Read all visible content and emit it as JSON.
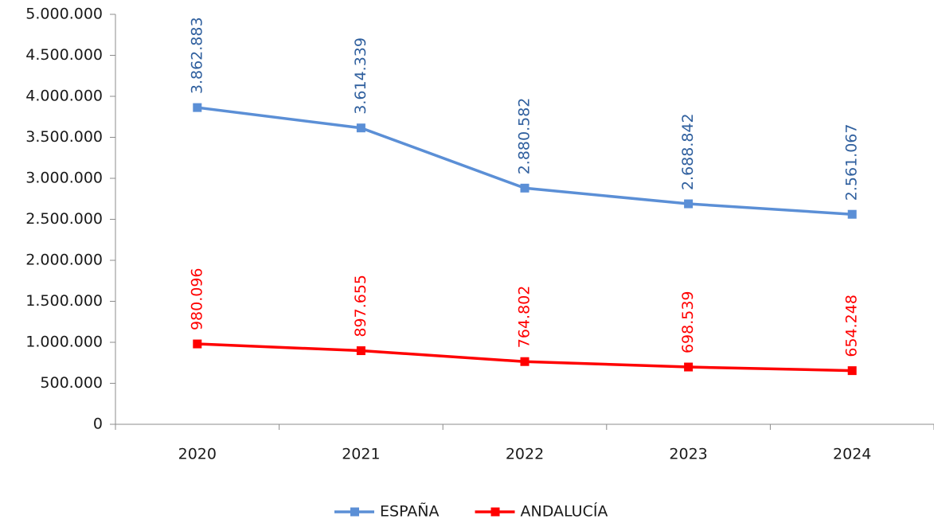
{
  "chart_data": {
    "type": "line",
    "categories": [
      "2020",
      "2021",
      "2022",
      "2023",
      "2024"
    ],
    "series": [
      {
        "name": "ESPAÑA",
        "color": "#5b8fd6",
        "label_color": "#2f5f9e",
        "values": [
          3862883,
          3614339,
          2880582,
          2688842,
          2561067
        ],
        "value_labels": [
          "3.862.883",
          "3.614.339",
          "2.880.582",
          "2.688.842",
          "2.561.067"
        ]
      },
      {
        "name": "ANDALUCÍA",
        "color": "#ff0000",
        "label_color": "#ff0000",
        "values": [
          980096,
          897655,
          764802,
          698539,
          654248
        ],
        "value_labels": [
          "980.096",
          "897.655",
          "764.802",
          "698.539",
          "654.248"
        ]
      }
    ],
    "ylim": [
      0,
      5000000
    ],
    "yticks": [
      {
        "value": 0,
        "label": "0"
      },
      {
        "value": 500000,
        "label": "500.000"
      },
      {
        "value": 1000000,
        "label": "1.000.000"
      },
      {
        "value": 1500000,
        "label": "1.500.000"
      },
      {
        "value": 2000000,
        "label": "2.000.000"
      },
      {
        "value": 2500000,
        "label": "2.500.000"
      },
      {
        "value": 3000000,
        "label": "3.000.000"
      },
      {
        "value": 3500000,
        "label": "3.500.000"
      },
      {
        "value": 4000000,
        "label": "4.000.000"
      },
      {
        "value": 4500000,
        "label": "4.500.000"
      },
      {
        "value": 5000000,
        "label": "5.000.000"
      }
    ],
    "grid": false,
    "legend": "bottom"
  }
}
